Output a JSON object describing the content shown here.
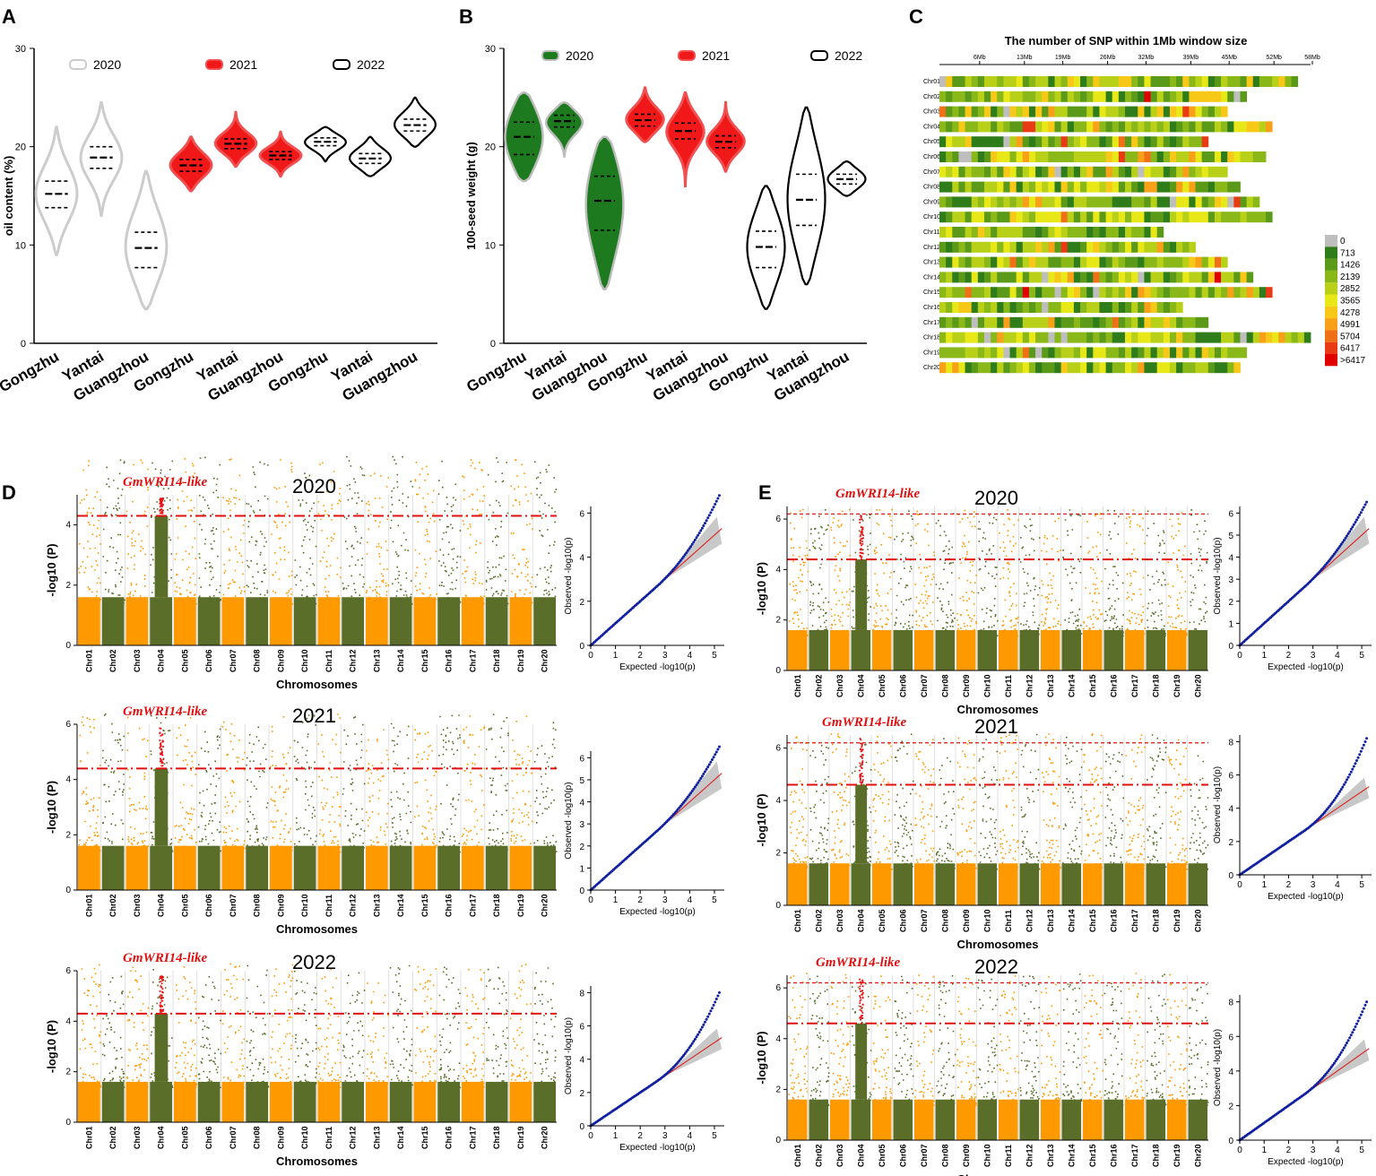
{
  "panels": {
    "A": "A",
    "B": "B",
    "C": "C",
    "D": "D",
    "E": "E"
  },
  "colors": {
    "green": "#4a7a1a",
    "red": "#f01010",
    "gray": "#cccccc",
    "orange": "#ff9900",
    "man_green": "#5a6e2a",
    "qq_blue": "#1020a0"
  },
  "chart_data": [
    {
      "id": "A",
      "type": "violin",
      "title": "",
      "ylabel": "oil content (%)",
      "ylim": [
        0,
        30
      ],
      "yticks": [
        "0",
        "10",
        "20",
        "30"
      ],
      "categories": [
        "Gongzhu",
        "Yantai",
        "Guangzhou",
        "Gongzhu",
        "Yantai",
        "Guangzhou",
        "Gongzhu",
        "Yantai",
        "Guangzhou"
      ],
      "legend": [
        "2020",
        "2021",
        "2022"
      ],
      "series": [
        {
          "name": "2020",
          "groups": [
            {
              "min": 9,
              "max": 22,
              "q1": 13.8,
              "median": 15.2,
              "q3": 16.5
            },
            {
              "min": 13,
              "max": 24.5,
              "q1": 17.8,
              "median": 18.9,
              "q3": 20
            },
            {
              "min": 3.5,
              "max": 17.5,
              "q1": 7.7,
              "median": 9.7,
              "q3": 11.3
            }
          ]
        },
        {
          "name": "2021",
          "groups": [
            {
              "min": 15.5,
              "max": 21,
              "q1": 17.5,
              "median": 18.1,
              "q3": 18.7
            },
            {
              "min": 18,
              "max": 23.5,
              "q1": 19.8,
              "median": 20.3,
              "q3": 20.8
            },
            {
              "min": 17,
              "max": 21.5,
              "q1": 18.7,
              "median": 19.1,
              "q3": 19.5
            }
          ]
        },
        {
          "name": "2022",
          "groups": [
            {
              "min": 18.5,
              "max": 22,
              "q1": 20.1,
              "median": 20.5,
              "q3": 20.9
            },
            {
              "min": 17,
              "max": 21,
              "q1": 18.3,
              "median": 18.8,
              "q3": 19.3
            },
            {
              "min": 20,
              "max": 25,
              "q1": 21.6,
              "median": 22.2,
              "q3": 22.8
            }
          ]
        }
      ]
    },
    {
      "id": "B",
      "type": "violin",
      "ylabel": "100-seed weight (g)",
      "ylim": [
        0,
        30
      ],
      "yticks": [
        "0",
        "10",
        "20",
        "30"
      ],
      "categories": [
        "Gongzhu",
        "Yantai",
        "Guangzhou",
        "Gongzhu",
        "Yantai",
        "Guangzhou",
        "Gongzhu",
        "Yantai",
        "Guangzhou"
      ],
      "legend": [
        "2020",
        "2021",
        "2022"
      ],
      "series": [
        {
          "name": "2020",
          "groups": [
            {
              "min": 16.5,
              "max": 25.5,
              "q1": 19.2,
              "median": 21,
              "q3": 22.5
            },
            {
              "min": 19,
              "max": 24.5,
              "q1": 22,
              "median": 22.6,
              "q3": 23.2
            },
            {
              "min": 5.5,
              "max": 21,
              "q1": 11.5,
              "median": 14.5,
              "q3": 17
            }
          ]
        },
        {
          "name": "2021",
          "groups": [
            {
              "min": 20.5,
              "max": 26,
              "q1": 22.1,
              "median": 22.7,
              "q3": 23.3
            },
            {
              "min": 16,
              "max": 25.5,
              "q1": 20.8,
              "median": 21.6,
              "q3": 22.4
            },
            {
              "min": 17.5,
              "max": 24.5,
              "q1": 19.9,
              "median": 20.5,
              "q3": 21.1
            }
          ]
        },
        {
          "name": "2022",
          "groups": [
            {
              "min": 3.5,
              "max": 16,
              "q1": 7.7,
              "median": 9.8,
              "q3": 11.4
            },
            {
              "min": 6,
              "max": 24,
              "q1": 12,
              "median": 14.6,
              "q3": 17.2
            },
            {
              "min": 15,
              "max": 18.5,
              "q1": 16.2,
              "median": 16.7,
              "q3": 17.2
            }
          ]
        }
      ]
    },
    {
      "id": "C",
      "type": "heatmap",
      "title": "The number of SNP within 1Mb window size",
      "xticks": [
        "6Mb",
        "13Mb",
        "19Mb",
        "26Mb",
        "32Mb",
        "39Mb",
        "45Mb",
        "52Mb",
        "58Mb"
      ],
      "chromosomes": [
        "Chr01",
        "Chr02",
        "Chr03",
        "Chr04",
        "Chr05",
        "Chr06",
        "Chr07",
        "Chr08",
        "Chr09",
        "Chr10",
        "Chr11",
        "Chr12",
        "Chr13",
        "Chr14",
        "Chr15",
        "Chr16",
        "Chr17",
        "Chr18",
        "Chr19",
        "Chr20"
      ],
      "lengths_mb": [
        56,
        48,
        45,
        52,
        42,
        51,
        45,
        47,
        50,
        52,
        35,
        40,
        45,
        49,
        52,
        38,
        42,
        58,
        48,
        47
      ],
      "legend_labels": [
        "0",
        "713",
        "1426",
        "2139",
        "2852",
        "3565",
        "4278",
        "4991",
        "5704",
        "6417",
        ">6417"
      ],
      "legend_colors": [
        "#bebebe",
        "#2e7d1a",
        "#5a9a18",
        "#8ab818",
        "#b8d018",
        "#e8e818",
        "#f8c818",
        "#f8a018",
        "#f07018",
        "#e83a14",
        "#e00000"
      ]
    },
    {
      "id": "D",
      "type": "manhattan_qq",
      "panels": [
        {
          "year": "2020",
          "gene": "GmWRI14-like",
          "ymax": 5,
          "threshold": 4.3,
          "peak_chr": "Chr04",
          "qq_xmax": 5,
          "qq_ymax": 6,
          "qq_yticks": [
            "0",
            "2",
            "4",
            "6"
          ],
          "qq_end": 6.8
        },
        {
          "year": "2021",
          "gene": "GmWRI14-like",
          "ymax": 6,
          "threshold": 4.4,
          "peak_chr": "Chr04",
          "qq_xmax": 5,
          "qq_ymax": 6,
          "qq_yticks": [
            "0",
            "1",
            "2",
            "3",
            "4",
            "5",
            "6"
          ],
          "qq_end": 6.5
        },
        {
          "year": "2022",
          "gene": "GmWRI14-like",
          "ymax": 6,
          "threshold": 4.3,
          "peak_chr": "Chr04",
          "qq_xmax": 5,
          "qq_ymax": 8,
          "qq_yticks": [
            "0",
            "2",
            "4",
            "6",
            "8"
          ],
          "qq_end": 8
        }
      ],
      "xlabel": "Chromosomes",
      "ylabel": "-log10 (P)",
      "qq_xlabel": "Expected -log10(p)",
      "qq_ylabel": "Observed -log10(p)",
      "chromosomes": [
        "Chr01",
        "Chr02",
        "Chr03",
        "Chr04",
        "Chr05",
        "Chr06",
        "Chr07",
        "Chr08",
        "Chr09",
        "Chr10",
        "Chr11",
        "Chr12",
        "Chr13",
        "Chr14",
        "Chr15",
        "Chr16",
        "Chr17",
        "Chr18",
        "Chr19",
        "Chr20"
      ]
    },
    {
      "id": "E",
      "type": "manhattan_qq",
      "panels": [
        {
          "year": "2020",
          "gene": "GmWRI14-like",
          "ymax": 6,
          "threshold": 4.4,
          "threshold2": 6.2,
          "peak_chr": "Chr04",
          "qq_xmax": 5,
          "qq_ymax": 6,
          "qq_yticks": [
            "0",
            "1",
            "2",
            "3",
            "4",
            "5",
            "6"
          ],
          "qq_end": 6.5
        },
        {
          "year": "2021",
          "gene": "GmWRI14-like",
          "ymax": 6,
          "threshold": 4.6,
          "threshold2": 6.2,
          "peak_chr": "Chr04",
          "qq_xmax": 5,
          "qq_ymax": 8,
          "qq_yticks": [
            "0",
            "2",
            "4",
            "6",
            "8"
          ],
          "qq_end": 8.2
        },
        {
          "year": "2022",
          "gene": "GmWRI14-like",
          "ymax": 6,
          "threshold": 4.6,
          "threshold2": 6.2,
          "peak_chr": "Chr04",
          "qq_xmax": 5,
          "qq_ymax": 8,
          "qq_yticks": [
            "0",
            "2",
            "4",
            "6",
            "8"
          ],
          "qq_end": 8
        }
      ],
      "xlabel": "Chromosomes",
      "ylabel": "-log10 (P)",
      "qq_xlabel": "Expected -log10(p)",
      "qq_ylabel": "Observed -log10(p)",
      "chromosomes": [
        "Chr01",
        "Chr02",
        "Chr03",
        "Chr04",
        "Chr05",
        "Chr06",
        "Chr07",
        "Chr08",
        "Chr09",
        "Chr10",
        "Chr11",
        "Chr12",
        "Chr13",
        "Chr14",
        "Chr15",
        "Chr16",
        "Chr17",
        "Chr18",
        "Chr19",
        "Chr20"
      ]
    }
  ]
}
